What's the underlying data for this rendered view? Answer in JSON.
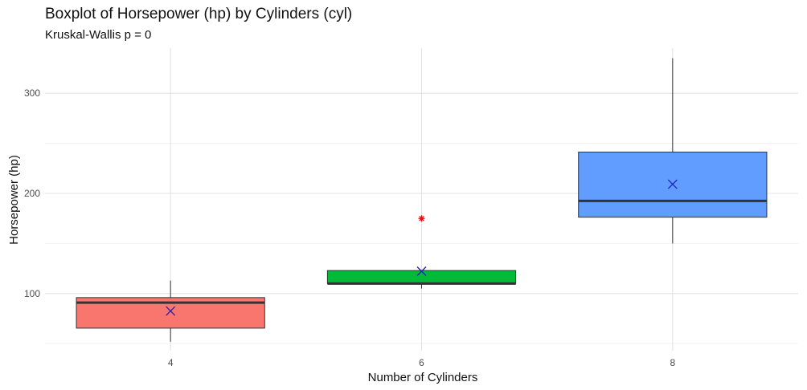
{
  "title": "Boxplot of Horsepower (hp) by Cylinders (cyl)",
  "subtitle": "Kruskal-Wallis p = 0",
  "chart_data": {
    "type": "boxplot",
    "title": "Boxplot of Horsepower (hp) by Cylinders (cyl)",
    "subtitle": "Kruskal-Wallis p = 0",
    "xlabel": "Number of Cylinders",
    "ylabel": "Horsepower (hp)",
    "ylim": [
      43,
      345
    ],
    "yticks": [
      100,
      200,
      300
    ],
    "grid": true,
    "categories": [
      "4",
      "6",
      "8"
    ],
    "boxes": [
      {
        "category": "4",
        "whisker_low": 52,
        "q1": 65.5,
        "median": 91,
        "q3": 96,
        "whisker_high": 113,
        "mean": 82.6,
        "outliers": [],
        "color": "#F8766D"
      },
      {
        "category": "6",
        "whisker_low": 105,
        "q1": 110,
        "median": 110,
        "q3": 123,
        "whisker_high": 123,
        "mean": 122.3,
        "outliers": [
          175
        ],
        "color": "#00BA38"
      },
      {
        "category": "8",
        "whisker_low": 150,
        "q1": 176.25,
        "median": 192.5,
        "q3": 241.25,
        "whisker_high": 335,
        "mean": 209.2,
        "outliers": [],
        "color": "#619CFF"
      }
    ],
    "mean_marker": {
      "shape": "x",
      "color": "#1f1fbf"
    },
    "outlier_marker": {
      "shape": "asterisk",
      "color": "#e01010"
    }
  }
}
